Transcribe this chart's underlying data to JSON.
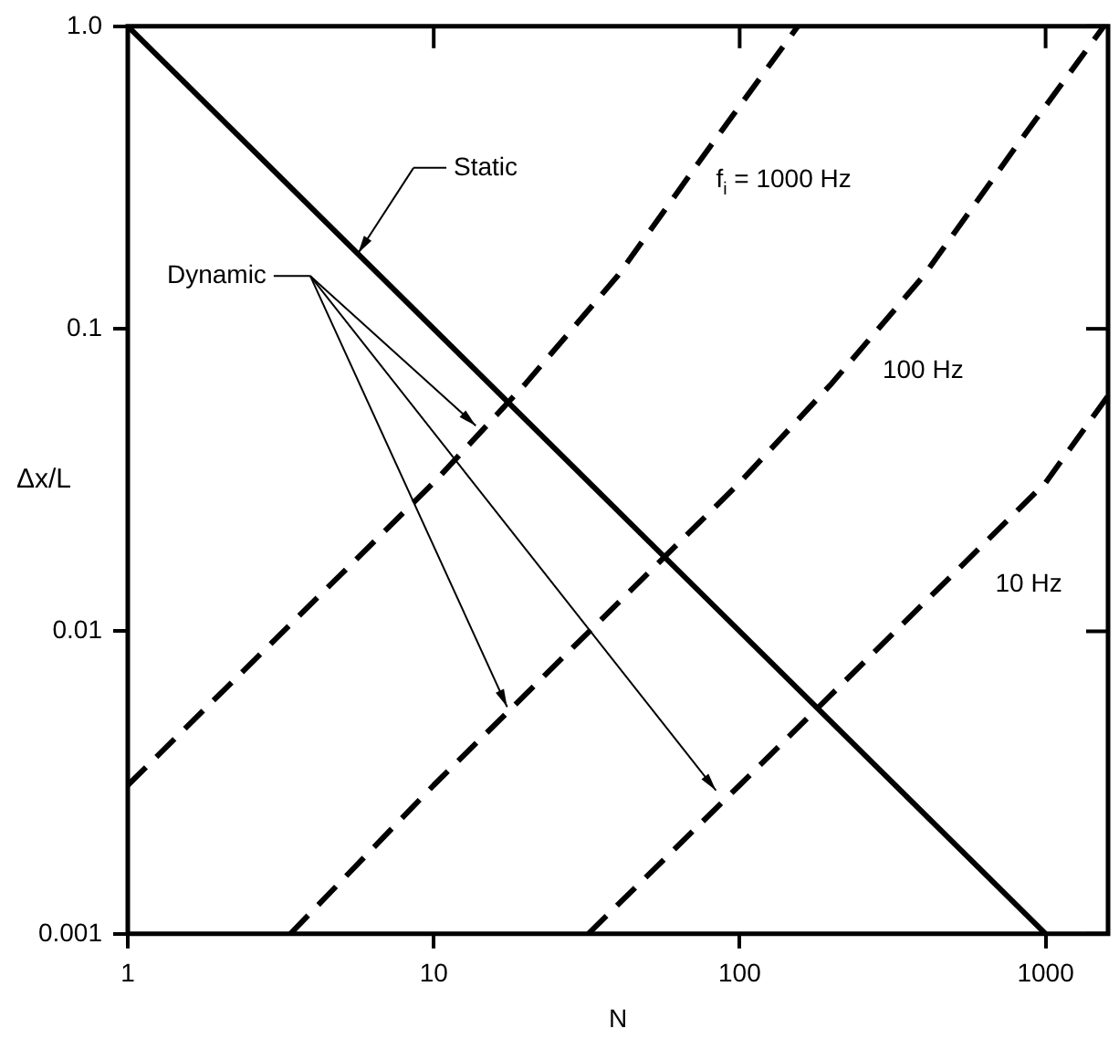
{
  "chart_data": {
    "type": "line",
    "xlabel": "N",
    "ylabel": "Δx/L",
    "log": "xy",
    "xlim": [
      1,
      1600
    ],
    "ylim": [
      0.001,
      1
    ],
    "xticks": [
      1,
      10,
      100,
      1000
    ],
    "yticks": [
      {
        "value": 0.001,
        "label": "0.001"
      },
      {
        "value": 0.01,
        "label": "0.01"
      },
      {
        "value": 0.1,
        "label": "0.1"
      },
      {
        "value": 1,
        "label": "1.0"
      }
    ],
    "grid": false,
    "legend": false,
    "marker": "none",
    "series": [
      {
        "color": "#000000",
        "line_style": "solid",
        "x": [
          1,
          1000
        ],
        "values": [
          1,
          0.001
        ]
      },
      {
        "name": "f$_{i}$ = 1000 Hz",
        "color": "#000000",
        "line_style": "dashed",
        "x": [
          1,
          10,
          20,
          40,
          80,
          155
        ],
        "values": [
          0.0031,
          0.031,
          0.066,
          0.15,
          0.4,
          1
        ]
      },
      {
        "name": "100 Hz",
        "color": "#000000",
        "line_style": "dashed",
        "x": [
          3.4,
          10,
          100,
          200,
          400,
          800,
          1550
        ],
        "values": [
          0.001,
          0.0031,
          0.031,
          0.066,
          0.15,
          0.4,
          1
        ]
      },
      {
        "name": "10 Hz",
        "color": "#000000",
        "line_style": "dashed",
        "x": [
          32,
          100,
          1000,
          1600
        ],
        "values": [
          0.001,
          0.0031,
          0.031,
          0.06
        ]
      }
    ],
    "annotations": [
      "Static",
      "Dynamic"
    ]
  }
}
